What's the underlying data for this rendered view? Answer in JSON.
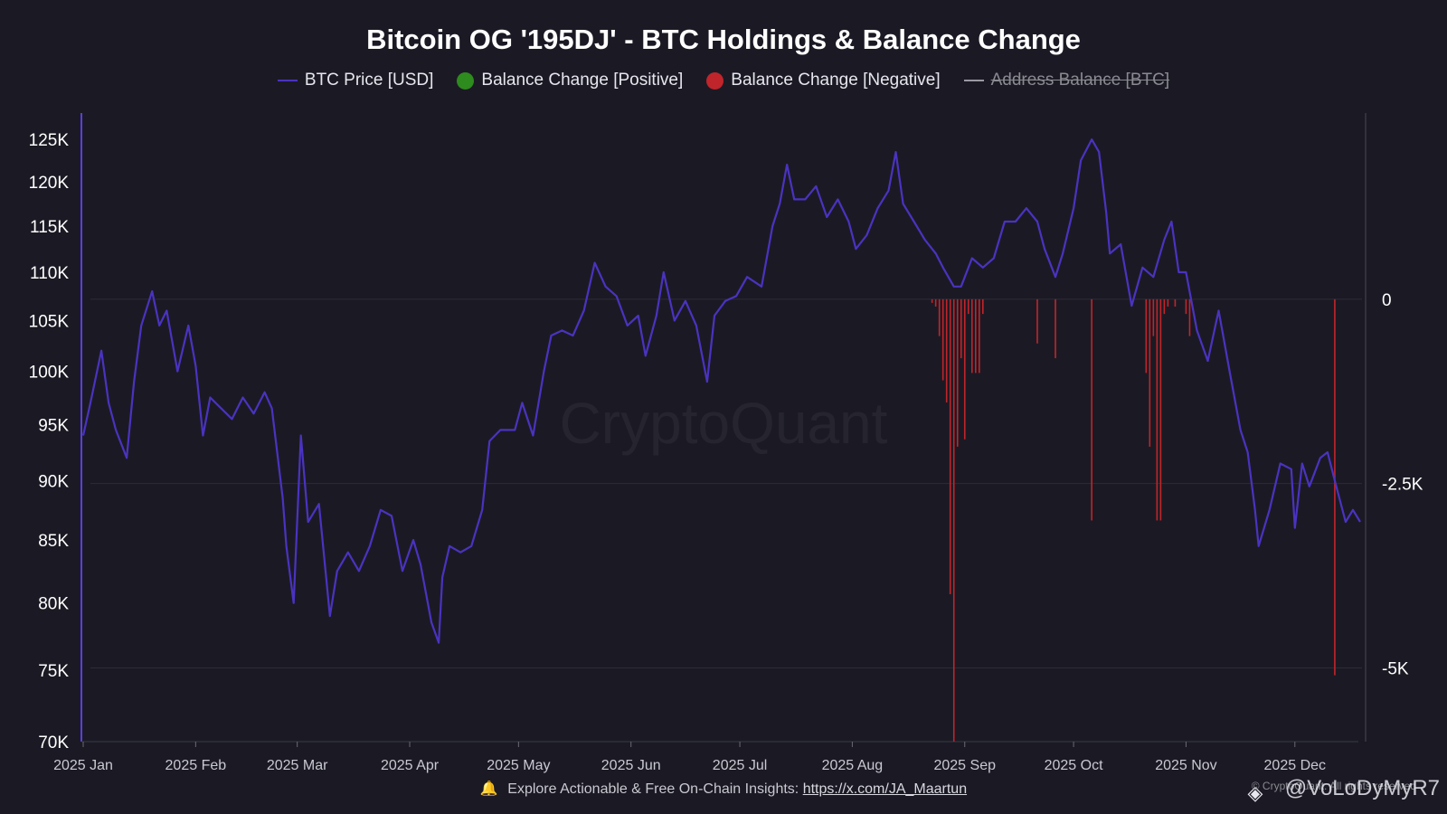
{
  "chart_data": {
    "type": "line",
    "title": "Bitcoin OG '195DJ' - BTC Holdings & Balance Change",
    "legend": {
      "placement": "top-center",
      "items": [
        {
          "label": "BTC Price [USD]",
          "color": "#4a33c0",
          "shape": "line",
          "enabled": true
        },
        {
          "label": "Balance Change [Positive]",
          "color": "#2e8b1e",
          "shape": "dot",
          "enabled": true
        },
        {
          "label": "Balance Change [Negative]",
          "color": "#c0252b",
          "shape": "dot",
          "enabled": true
        },
        {
          "label": "Address Balance [BTC]",
          "color": "#9a9aa2",
          "shape": "line",
          "enabled": false
        }
      ]
    },
    "x_axis": {
      "type": "date",
      "range": [
        "2025-01-01",
        "2025-12-20"
      ],
      "tick_labels": [
        "2025 Jan",
        "2025 Feb",
        "2025 Mar",
        "2025 Apr",
        "2025 May",
        "2025 Jun",
        "2025 Jul",
        "2025 Aug",
        "2025 Sep",
        "2025 Oct",
        "2025 Nov",
        "2025 Dec"
      ]
    },
    "y_axis_left": {
      "label": "",
      "scale": "log",
      "range": [
        70000,
        128000
      ],
      "tick_labels": [
        "70K",
        "75K",
        "80K",
        "85K",
        "90K",
        "95K",
        "100K",
        "105K",
        "110K",
        "115K",
        "120K",
        "125K"
      ]
    },
    "y_axis_right": {
      "label": "",
      "range": [
        -6000,
        2500
      ],
      "tick_labels": [
        "0",
        "-2.5K",
        "-5K"
      ]
    },
    "grid": true,
    "series": [
      {
        "name": "BTC Price [USD]",
        "type": "line",
        "color": "#4a33c0",
        "points": [
          [
            "2025-01-01",
            94000
          ],
          [
            "2025-01-03",
            97000
          ],
          [
            "2025-01-06",
            102000
          ],
          [
            "2025-01-08",
            97000
          ],
          [
            "2025-01-10",
            94500
          ],
          [
            "2025-01-13",
            92000
          ],
          [
            "2025-01-15",
            99000
          ],
          [
            "2025-01-17",
            104500
          ],
          [
            "2025-01-20",
            108000
          ],
          [
            "2025-01-22",
            104500
          ],
          [
            "2025-01-24",
            106000
          ],
          [
            "2025-01-27",
            100000
          ],
          [
            "2025-01-30",
            104500
          ],
          [
            "2025-02-01",
            100500
          ],
          [
            "2025-02-03",
            94000
          ],
          [
            "2025-02-05",
            97500
          ],
          [
            "2025-02-08",
            96500
          ],
          [
            "2025-02-11",
            95500
          ],
          [
            "2025-02-14",
            97500
          ],
          [
            "2025-02-17",
            96000
          ],
          [
            "2025-02-20",
            98000
          ],
          [
            "2025-02-22",
            96500
          ],
          [
            "2025-02-25",
            88500
          ],
          [
            "2025-02-26",
            84500
          ],
          [
            "2025-02-28",
            80000
          ],
          [
            "2025-03-02",
            94000
          ],
          [
            "2025-03-04",
            86500
          ],
          [
            "2025-03-07",
            88000
          ],
          [
            "2025-03-10",
            79000
          ],
          [
            "2025-03-12",
            82500
          ],
          [
            "2025-03-15",
            84000
          ],
          [
            "2025-03-18",
            82500
          ],
          [
            "2025-03-21",
            84500
          ],
          [
            "2025-03-24",
            87500
          ],
          [
            "2025-03-27",
            87000
          ],
          [
            "2025-03-30",
            82500
          ],
          [
            "2025-04-02",
            85000
          ],
          [
            "2025-04-04",
            83000
          ],
          [
            "2025-04-07",
            78500
          ],
          [
            "2025-04-09",
            77000
          ],
          [
            "2025-04-10",
            82000
          ],
          [
            "2025-04-12",
            84500
          ],
          [
            "2025-04-15",
            84000
          ],
          [
            "2025-04-18",
            84500
          ],
          [
            "2025-04-21",
            87500
          ],
          [
            "2025-04-23",
            93500
          ],
          [
            "2025-04-26",
            94500
          ],
          [
            "2025-04-30",
            94500
          ],
          [
            "2025-05-02",
            97000
          ],
          [
            "2025-05-05",
            94000
          ],
          [
            "2025-05-08",
            100000
          ],
          [
            "2025-05-10",
            103500
          ],
          [
            "2025-05-13",
            104000
          ],
          [
            "2025-05-16",
            103500
          ],
          [
            "2025-05-19",
            106000
          ],
          [
            "2025-05-22",
            111000
          ],
          [
            "2025-05-25",
            108500
          ],
          [
            "2025-05-28",
            107500
          ],
          [
            "2025-05-31",
            104500
          ],
          [
            "2025-06-03",
            105500
          ],
          [
            "2025-06-05",
            101500
          ],
          [
            "2025-06-08",
            105500
          ],
          [
            "2025-06-10",
            110000
          ],
          [
            "2025-06-13",
            105000
          ],
          [
            "2025-06-16",
            107000
          ],
          [
            "2025-06-19",
            104500
          ],
          [
            "2025-06-22",
            99000
          ],
          [
            "2025-06-24",
            105500
          ],
          [
            "2025-06-27",
            107000
          ],
          [
            "2025-06-30",
            107500
          ],
          [
            "2025-07-03",
            109500
          ],
          [
            "2025-07-07",
            108500
          ],
          [
            "2025-07-10",
            115000
          ],
          [
            "2025-07-12",
            117500
          ],
          [
            "2025-07-14",
            122000
          ],
          [
            "2025-07-16",
            118000
          ],
          [
            "2025-07-19",
            118000
          ],
          [
            "2025-07-22",
            119500
          ],
          [
            "2025-07-25",
            116000
          ],
          [
            "2025-07-28",
            118000
          ],
          [
            "2025-07-31",
            115500
          ],
          [
            "2025-08-02",
            112500
          ],
          [
            "2025-08-05",
            114000
          ],
          [
            "2025-08-08",
            117000
          ],
          [
            "2025-08-11",
            119000
          ],
          [
            "2025-08-13",
            123500
          ],
          [
            "2025-08-15",
            117500
          ],
          [
            "2025-08-18",
            115500
          ],
          [
            "2025-08-21",
            113500
          ],
          [
            "2025-08-24",
            112000
          ],
          [
            "2025-08-26",
            110500
          ],
          [
            "2025-08-29",
            108500
          ],
          [
            "2025-08-31",
            108500
          ],
          [
            "2025-09-03",
            111500
          ],
          [
            "2025-09-06",
            110500
          ],
          [
            "2025-09-09",
            111500
          ],
          [
            "2025-09-12",
            115500
          ],
          [
            "2025-09-15",
            115500
          ],
          [
            "2025-09-18",
            117000
          ],
          [
            "2025-09-21",
            115500
          ],
          [
            "2025-09-23",
            112500
          ],
          [
            "2025-09-26",
            109500
          ],
          [
            "2025-09-28",
            112000
          ],
          [
            "2025-10-01",
            117000
          ],
          [
            "2025-10-03",
            122500
          ],
          [
            "2025-10-06",
            125000
          ],
          [
            "2025-10-08",
            123500
          ],
          [
            "2025-10-10",
            116500
          ],
          [
            "2025-10-11",
            112000
          ],
          [
            "2025-10-14",
            113000
          ],
          [
            "2025-10-17",
            106500
          ],
          [
            "2025-10-20",
            110500
          ],
          [
            "2025-10-23",
            109500
          ],
          [
            "2025-10-26",
            113500
          ],
          [
            "2025-10-28",
            115500
          ],
          [
            "2025-10-30",
            110000
          ],
          [
            "2025-11-01",
            110000
          ],
          [
            "2025-11-04",
            104000
          ],
          [
            "2025-11-07",
            101000
          ],
          [
            "2025-11-10",
            106000
          ],
          [
            "2025-11-13",
            100000
          ],
          [
            "2025-11-16",
            94500
          ],
          [
            "2025-11-18",
            92500
          ],
          [
            "2025-11-20",
            87500
          ],
          [
            "2025-11-21",
            84500
          ],
          [
            "2025-11-24",
            87500
          ],
          [
            "2025-11-27",
            91500
          ],
          [
            "2025-11-30",
            91000
          ],
          [
            "2025-12-01",
            86000
          ],
          [
            "2025-12-03",
            91500
          ],
          [
            "2025-12-05",
            89500
          ],
          [
            "2025-12-08",
            92000
          ],
          [
            "2025-12-10",
            92500
          ],
          [
            "2025-12-12",
            90000
          ],
          [
            "2025-12-15",
            86500
          ],
          [
            "2025-12-17",
            87500
          ],
          [
            "2025-12-19",
            86500
          ]
        ]
      },
      {
        "name": "Balance Change [Negative]",
        "type": "bar",
        "color": "#c0252b",
        "points": [
          [
            "2025-08-23",
            -50
          ],
          [
            "2025-08-24",
            -100
          ],
          [
            "2025-08-25",
            -500
          ],
          [
            "2025-08-26",
            -1100
          ],
          [
            "2025-08-27",
            -1400
          ],
          [
            "2025-08-28",
            -4000
          ],
          [
            "2025-08-29",
            -6000
          ],
          [
            "2025-08-30",
            -2000
          ],
          [
            "2025-08-31",
            -800
          ],
          [
            "2025-09-01",
            -1900
          ],
          [
            "2025-09-02",
            -200
          ],
          [
            "2025-09-03",
            -1000
          ],
          [
            "2025-09-04",
            -1000
          ],
          [
            "2025-09-05",
            -1000
          ],
          [
            "2025-09-06",
            -200
          ],
          [
            "2025-09-21",
            -600
          ],
          [
            "2025-09-26",
            -800
          ],
          [
            "2025-10-06",
            -3000
          ],
          [
            "2025-10-21",
            -1000
          ],
          [
            "2025-10-22",
            -2000
          ],
          [
            "2025-10-23",
            -500
          ],
          [
            "2025-10-24",
            -3000
          ],
          [
            "2025-10-25",
            -3000
          ],
          [
            "2025-10-26",
            -200
          ],
          [
            "2025-10-27",
            -100
          ],
          [
            "2025-10-29",
            -100
          ],
          [
            "2025-11-01",
            -200
          ],
          [
            "2025-11-02",
            -500
          ],
          [
            "2025-12-12",
            -5100
          ]
        ]
      }
    ]
  },
  "watermark": "CryptoQuant",
  "footer": {
    "text": "Explore Actionable & Free On-Chain Insights:",
    "link": "https://x.com/JA_Maartun"
  },
  "credit": "© CryptoQuant. All rights reserved",
  "handle": "@VoLoDyMyR7"
}
